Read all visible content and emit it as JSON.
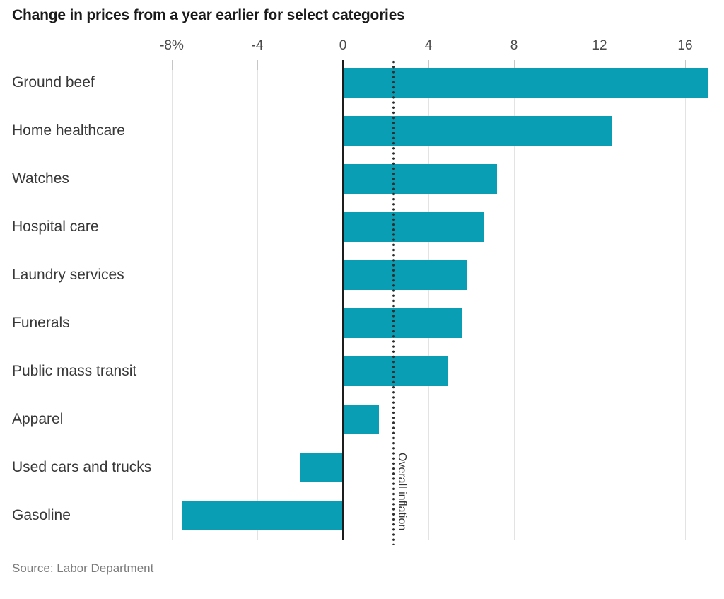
{
  "title": "Change in prices from a year earlier for select categories",
  "source": "Source: Labor Department",
  "chart_data": {
    "type": "bar",
    "orientation": "horizontal",
    "title": "Change in prices from a year earlier for select categories",
    "unit": "percent",
    "categories": [
      "Ground beef",
      "Home healthcare",
      "Watches",
      "Hospital care",
      "Laundry services",
      "Funerals",
      "Public mass transit",
      "Apparel",
      "Used cars and trucks",
      "Gasoline"
    ],
    "values": [
      17.1,
      12.6,
      7.2,
      6.6,
      5.8,
      5.6,
      4.9,
      1.7,
      -2.0,
      -7.5
    ],
    "x_ticks": [
      {
        "value": -8,
        "label": "-8%"
      },
      {
        "value": -4,
        "label": "-4"
      },
      {
        "value": 0,
        "label": "0"
      },
      {
        "value": 4,
        "label": "4"
      },
      {
        "value": 8,
        "label": "8"
      },
      {
        "value": 12,
        "label": "12"
      },
      {
        "value": 16,
        "label": "16"
      }
    ],
    "xlim": [
      -8.8,
      17.8
    ],
    "grid": true,
    "legend": "none",
    "reference_line": {
      "label": "Overall inflation",
      "value": 2.4,
      "style": "dotted"
    },
    "bar_color": "#0a9eb5",
    "source_note": "Source: Labor Department"
  }
}
